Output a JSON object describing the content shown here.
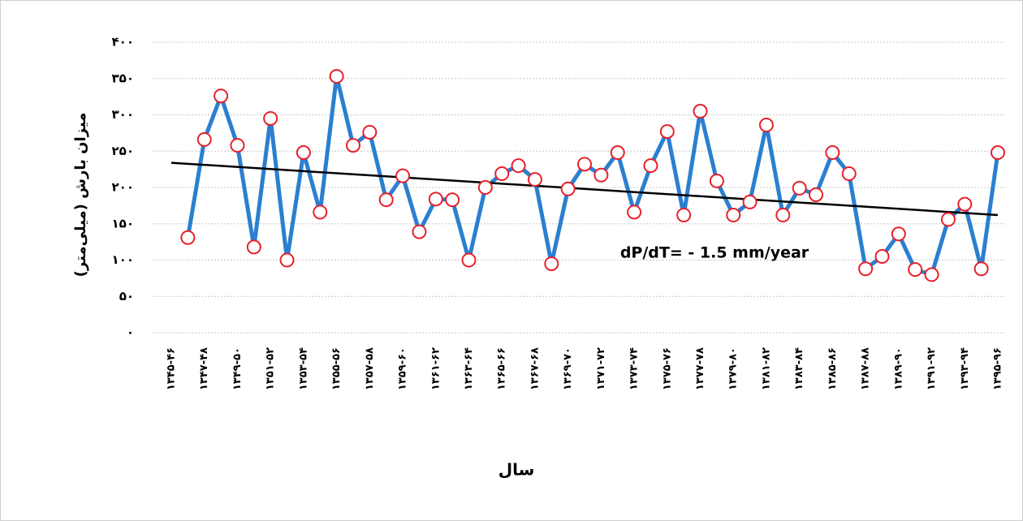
{
  "chart_data": {
    "type": "line",
    "y_label": "میزان بارش (میلی‌متر)",
    "x_label": "سال",
    "annotation": "dP/dT= - 1.5 mm/year",
    "categories": [
      "۱۳۴۵-۴۶",
      null,
      "۱۳۴۷-۴۸",
      null,
      "۱۳۴۹-۵۰",
      null,
      "۱۳۵۱-۵۲",
      null,
      "۱۳۵۳-۵۴",
      null,
      "۱۳۵۵-۵۶",
      null,
      "۱۳۵۷-۵۸",
      null,
      "۱۳۵۹-۶۰",
      null,
      "۱۳۶۱-۶۲",
      null,
      "۱۳۶۳-۶۴",
      null,
      "۱۳۶۵-۶۶",
      null,
      "۱۳۶۷-۶۸",
      null,
      "۱۳۶۹-۷۰",
      null,
      "۱۳۷۱-۷۲",
      null,
      "۱۳۷۳-۷۴",
      null,
      "۱۳۷۵-۷۶",
      null,
      "۱۳۷۷-۷۸",
      null,
      "۱۳۷۹-۸۰",
      null,
      "۱۳۸۱-۸۲",
      null,
      "۱۳۸۳-۸۴",
      null,
      "۱۳۸۵-۸۶",
      null,
      "۱۳۸۷-۸۸",
      null,
      "۱۳۸۹-۹۰",
      null,
      "۱۳۹۱-۹۲",
      null,
      "۱۳۹۳-۹۴",
      null,
      "۱۳۹۵-۹۶"
    ],
    "values": [
      null,
      131,
      266,
      326,
      258,
      118,
      295,
      100,
      248,
      166,
      353,
      258,
      276,
      183,
      216,
      139,
      184,
      183,
      100,
      200,
      219,
      230,
      211,
      95,
      198,
      232,
      217,
      248,
      166,
      230,
      277,
      162,
      305,
      209,
      162,
      180,
      286,
      162,
      199,
      190,
      248,
      219,
      88,
      105,
      136,
      87,
      80,
      156,
      177,
      88,
      248
    ],
    "color": "#2b7fd0",
    "marker_color": "#e8202a",
    "trend_values": [
      234,
      162
    ],
    "trend_color": "#000000",
    "ylim": [
      0,
      400
    ],
    "yticks": [
      {
        "value": 0,
        "label": "۰"
      },
      {
        "value": 50,
        "label": "۵۰"
      },
      {
        "value": 100,
        "label": "۱۰۰"
      },
      {
        "value": 150,
        "label": "۱۵۰"
      },
      {
        "value": 200,
        "label": "۲۰۰"
      },
      {
        "value": 250,
        "label": "۲۵۰"
      },
      {
        "value": 300,
        "label": "۳۰۰"
      },
      {
        "value": 350,
        "label": "۳۵۰"
      },
      {
        "value": 400,
        "label": "۴۰۰"
      }
    ],
    "grid": true
  }
}
